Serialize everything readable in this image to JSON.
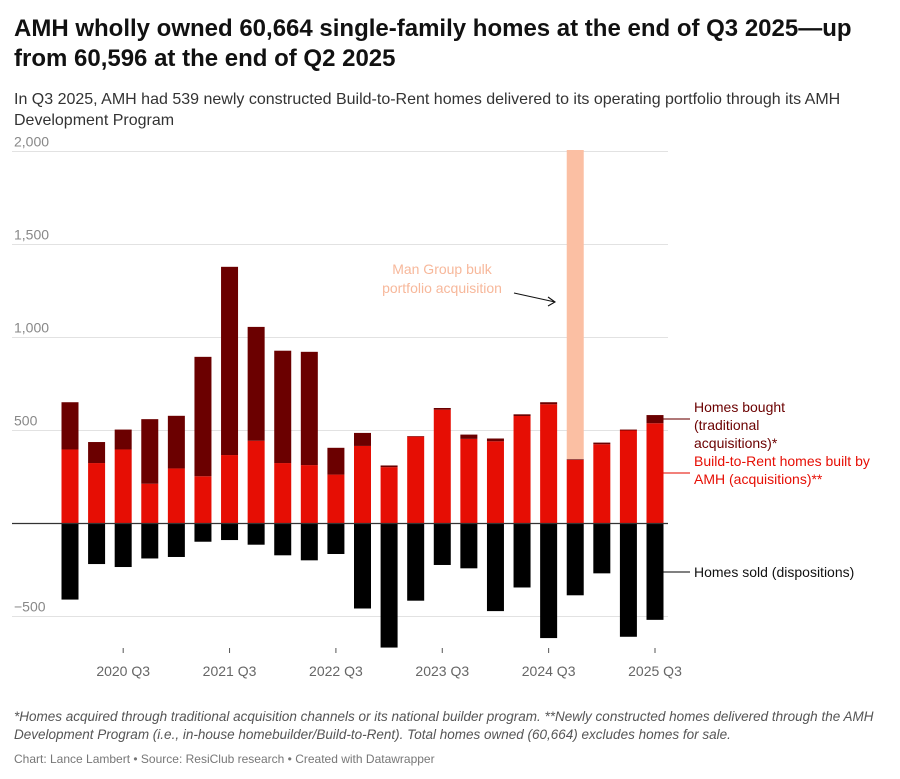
{
  "title": "AMH wholly owned 60,664 single-family homes at the end of Q3 2025—up from 60,596 at the end of Q2 2025",
  "subtitle": "In Q3 2025, AMH had 539 newly constructed Build-to-Rent homes delivered to its operating portfolio through its AMH Development Program",
  "footnote": "*Homes acquired through traditional acquisition channels or its national builder program. **Newly constructed homes delivered through the AMH Development Program (i.e., in-house homebuilder/Build-to-Rent). Total homes owned (60,664) excludes homes for sale.",
  "credit": "Chart: Lance Lambert • Source: ResiClub research • Created with Datawrapper",
  "colors": {
    "bought": "#6b0000",
    "built": "#e60e04",
    "sold": "#000000",
    "man_group": "#fbbfa3",
    "annotation": "#f7b89b"
  },
  "chart_data": {
    "type": "bar",
    "stacked": true,
    "categories": [
      "2020 Q1",
      "2020 Q2",
      "2020 Q3",
      "2020 Q4",
      "2021 Q1",
      "2021 Q2",
      "2021 Q3",
      "2021 Q4",
      "2022 Q1",
      "2022 Q2",
      "2022 Q3",
      "2022 Q4",
      "2023 Q1",
      "2023 Q2",
      "2023 Q3",
      "2023 Q4",
      "2024 Q1",
      "2024 Q2",
      "2024 Q3",
      "2024 Q4",
      "2025 Q1",
      "2025 Q2",
      "2025 Q3"
    ],
    "x_tick_labels": [
      "2020 Q3",
      "2021 Q3",
      "2022 Q3",
      "2023 Q3",
      "2024 Q3",
      "2025 Q3"
    ],
    "y_ticks": [
      2000,
      1500,
      1000,
      500,
      0,
      -500
    ],
    "y_tick_labels": [
      "2,000",
      "1,500",
      "1,000",
      "500",
      "",
      "−500"
    ],
    "ylim": [
      -650,
      2000
    ],
    "grid": true,
    "series": [
      {
        "key": "built",
        "name": "Build-to-Rent homes built by AMH (acquisitions)**",
        "values": [
          398,
          325,
          398,
          214,
          296,
          254,
          368,
          445,
          325,
          314,
          263,
          417,
          303,
          467,
          612,
          455,
          442,
          578,
          641,
          342,
          426,
          500,
          539
        ]
      },
      {
        "key": "bought",
        "name": "Homes bought (traditional acquisitions)*",
        "values": [
          254,
          113,
          107,
          347,
          283,
          642,
          1012,
          612,
          604,
          609,
          144,
          70,
          9,
          3,
          9,
          23,
          15,
          9,
          11,
          4,
          9,
          5,
          44
        ]
      },
      {
        "key": "man_group",
        "name": "",
        "values": [
          0,
          0,
          0,
          0,
          0,
          0,
          0,
          0,
          0,
          0,
          0,
          0,
          0,
          0,
          0,
          0,
          0,
          0,
          0,
          1665,
          0,
          0,
          0
        ]
      },
      {
        "key": "sold",
        "name": "Homes sold (dispositions)",
        "values": [
          -409,
          -218,
          -234,
          -188,
          -180,
          -98,
          -89,
          -114,
          -171,
          -198,
          -164,
          -457,
          -667,
          -415,
          -223,
          -241,
          -471,
          -344,
          -616,
          -386,
          -268,
          -609,
          -518
        ]
      }
    ],
    "annotation": {
      "text_line1": "Man Group bulk",
      "text_line2": "portfolio acquisition",
      "target": "2024 Q4"
    }
  }
}
